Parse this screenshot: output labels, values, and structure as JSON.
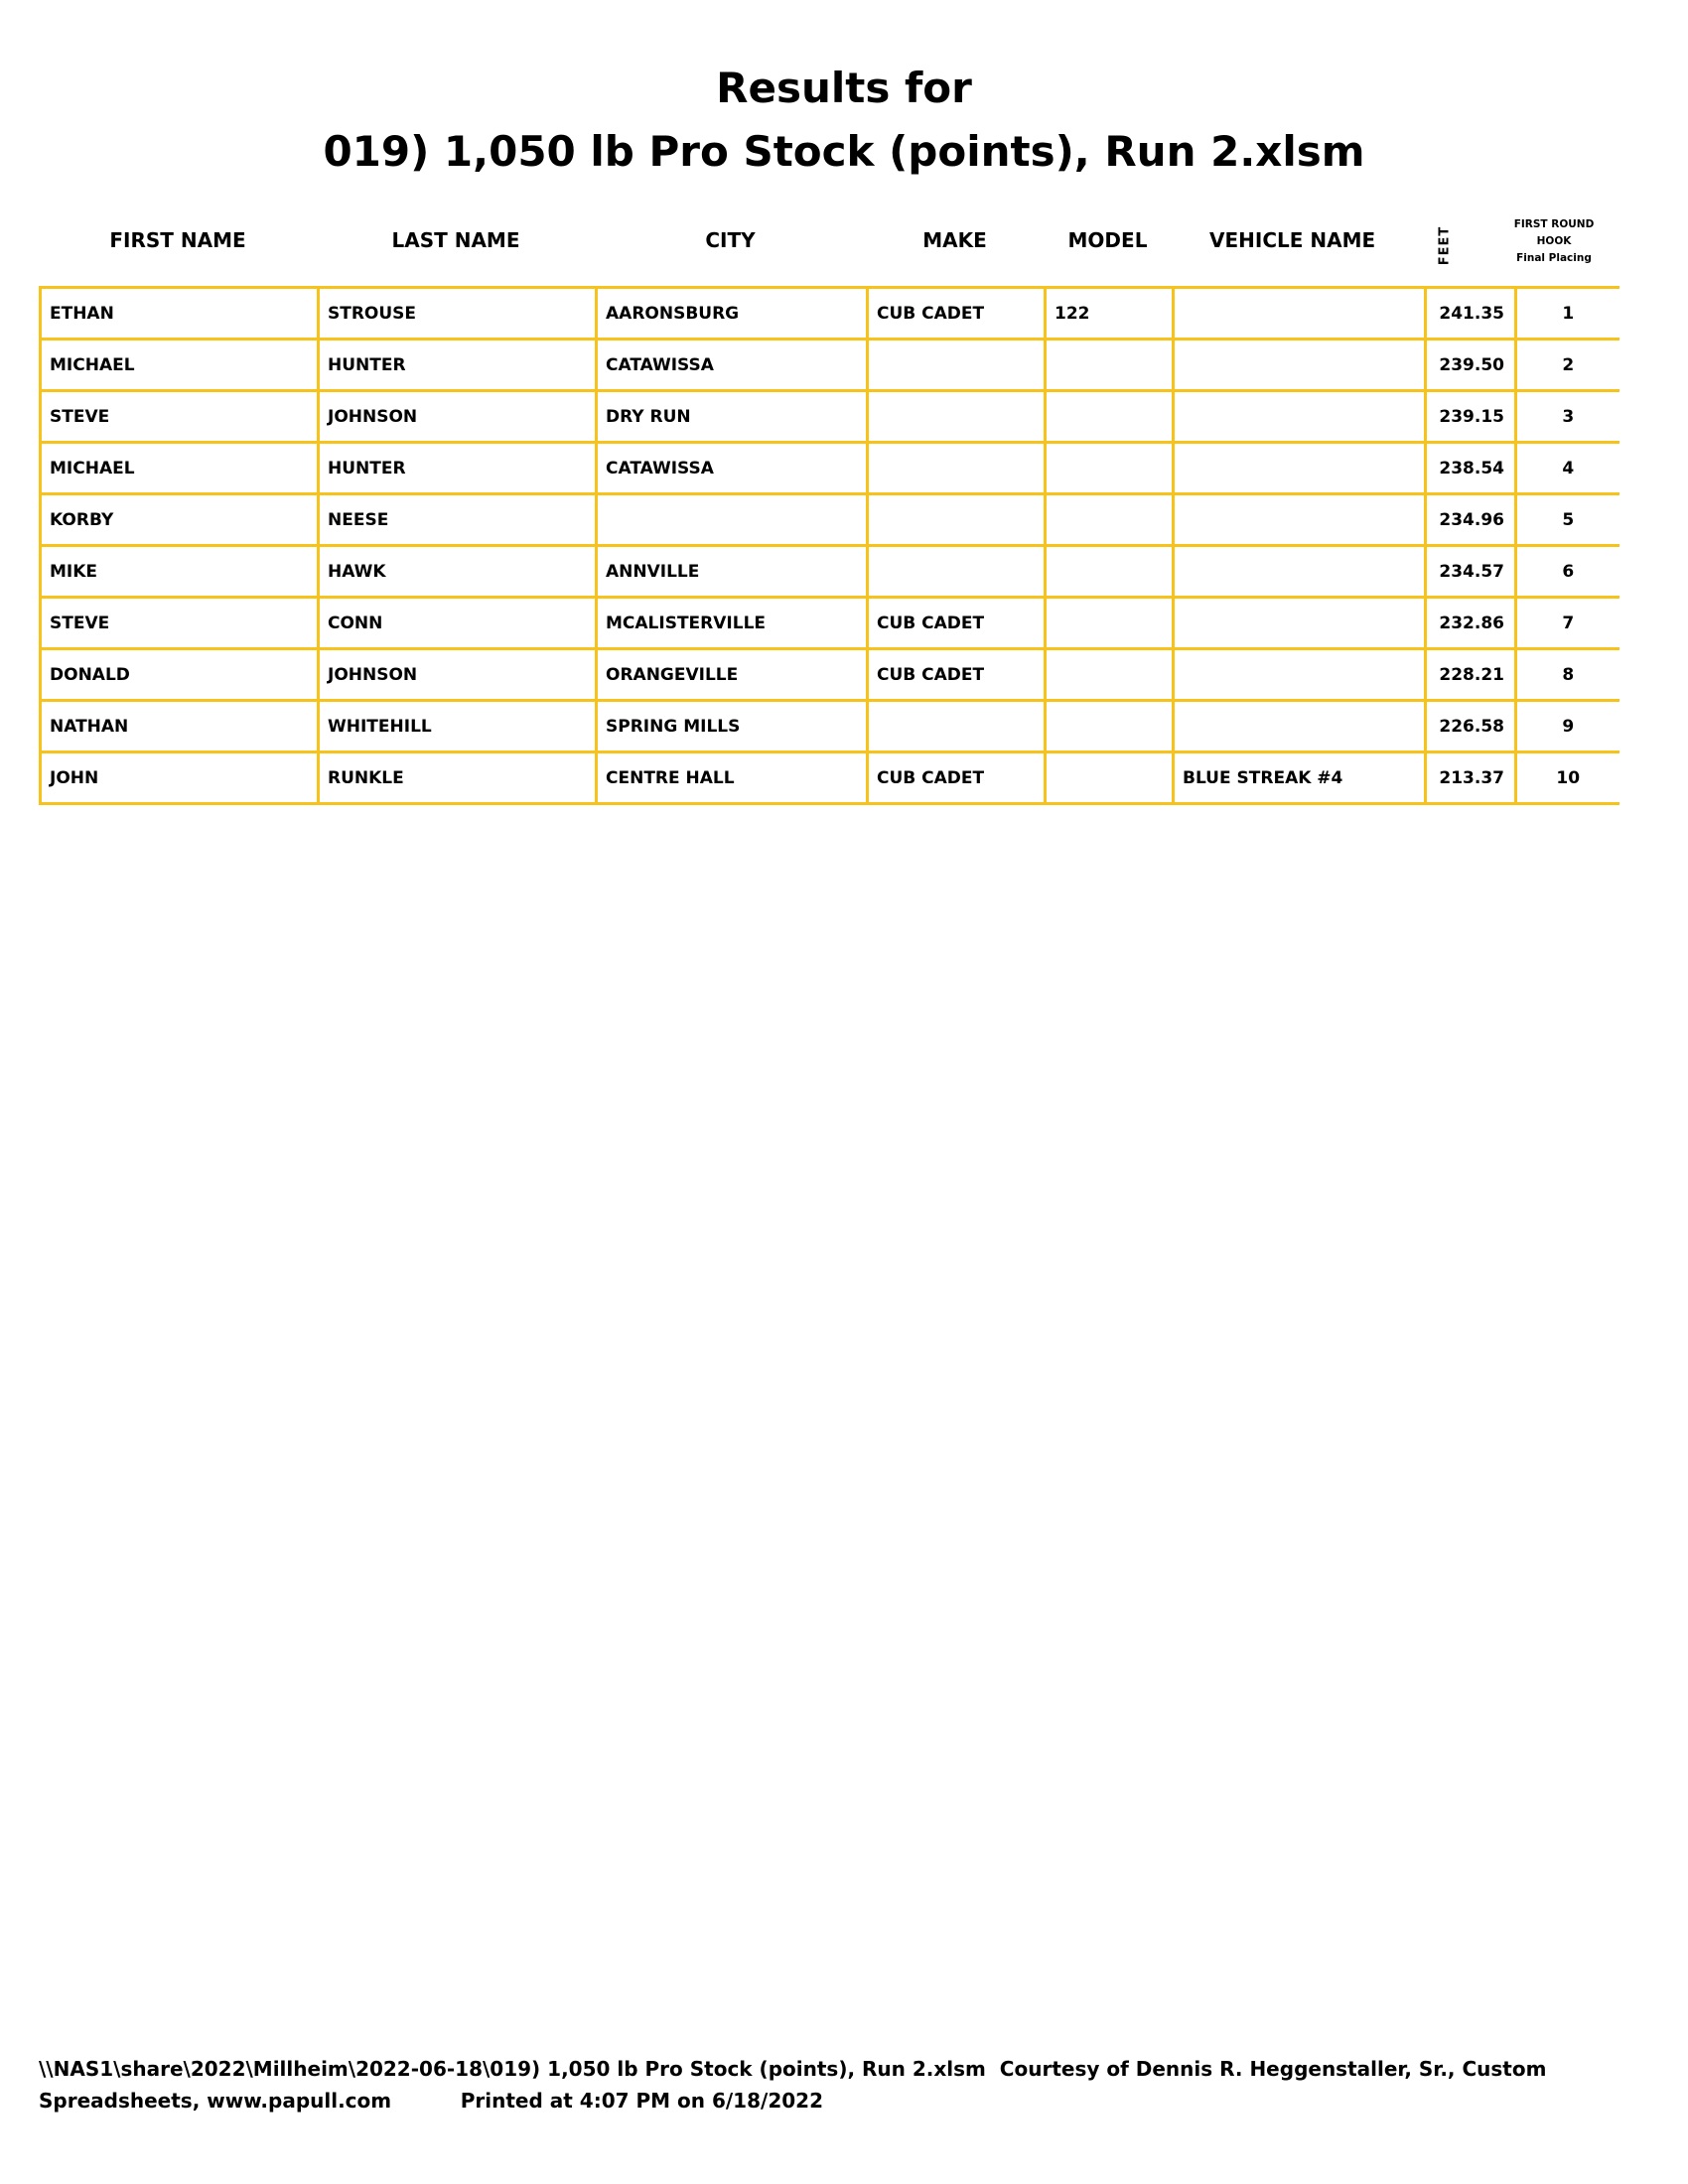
{
  "title_line1": "Results for",
  "title_line2": "019) 1,050 lb Pro Stock (points), Run 2.xlsm",
  "headers": {
    "first_name": "FIRST NAME",
    "last_name": "LAST NAME",
    "city": "CITY",
    "make": "MAKE",
    "model": "MODEL",
    "vehicle_name": "VEHICLE NAME",
    "feet": "FEET",
    "placing_line1": "FIRST ROUND",
    "placing_line2": "HOOK",
    "placing_line3": "Final Placing"
  },
  "rows": [
    [
      "ETHAN",
      "STROUSE",
      "AARONSBURG",
      "CUB CADET",
      "122",
      "",
      "241.35",
      "1"
    ],
    [
      "MICHAEL",
      "HUNTER",
      "CATAWISSA",
      "",
      "",
      "",
      "239.50",
      "2"
    ],
    [
      "STEVE",
      "JOHNSON",
      "DRY RUN",
      "",
      "",
      "",
      "239.15",
      "3"
    ],
    [
      "MICHAEL",
      "HUNTER",
      "CATAWISSA",
      "",
      "",
      "",
      "238.54",
      "4"
    ],
    [
      "KORBY",
      "NEESE",
      "",
      "",
      "",
      "",
      "234.96",
      "5"
    ],
    [
      "MIKE",
      "HAWK",
      "ANNVILLE",
      "",
      "",
      "",
      "234.57",
      "6"
    ],
    [
      "STEVE",
      "CONN",
      "MCALISTERVILLE",
      "CUB CADET",
      "",
      "",
      "232.86",
      "7"
    ],
    [
      "DONALD",
      "JOHNSON",
      "ORANGEVILLE",
      "CUB CADET",
      "",
      "",
      "228.21",
      "8"
    ],
    [
      "NATHAN",
      "WHITEHILL",
      "SPRING MILLS",
      "",
      "",
      "",
      "226.58",
      "9"
    ],
    [
      "JOHN",
      "RUNKLE",
      "CENTRE HALL",
      "CUB CADET",
      "",
      "BLUE STREAK #4",
      "213.37",
      "10"
    ]
  ],
  "footer_line1": "\\\\NAS1\\share\\2022\\Millheim\\2022-06-18\\019) 1,050 lb Pro Stock (points), Run 2.xlsm  Courtesy of Dennis R. Heggenstaller, Sr., Custom",
  "footer_line2": "Spreadsheets, www.papull.com          Printed at 4:07 PM on 6/18/2022",
  "colors": {
    "grid": "#f7c31b"
  }
}
